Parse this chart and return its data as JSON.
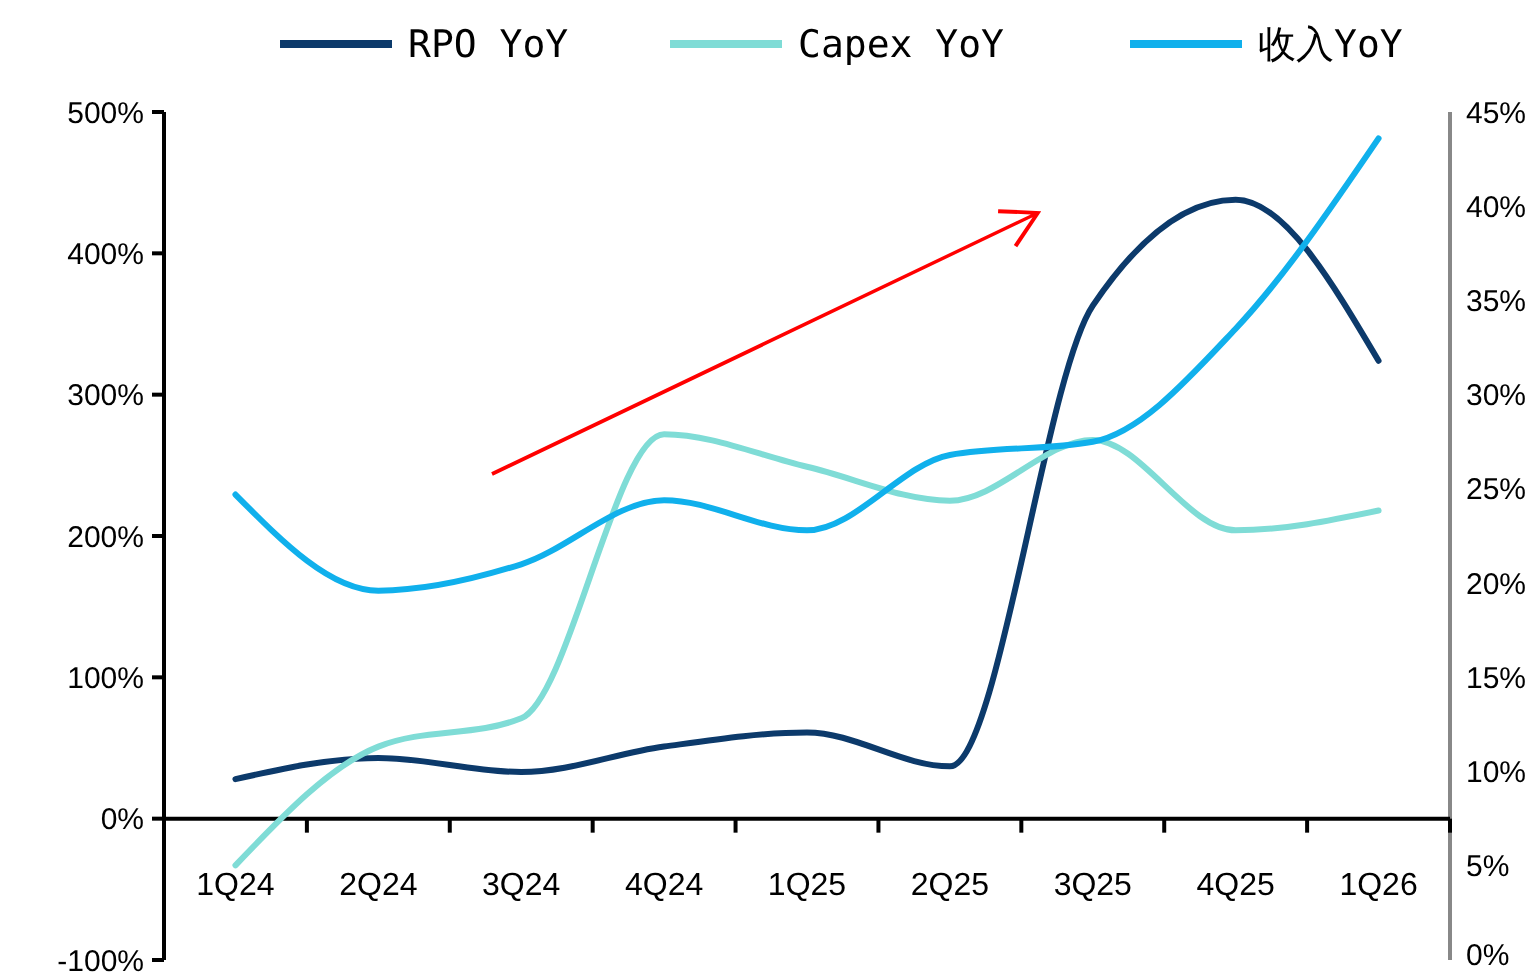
{
  "chart_data": {
    "type": "line",
    "categories": [
      "1Q24",
      "2Q24",
      "3Q24",
      "4Q24",
      "1Q25",
      "2Q25",
      "3Q25",
      "4Q25",
      "1Q26"
    ],
    "series": [
      {
        "name": "RPO YoY",
        "color": "#0c3a6b",
        "values": [
          28,
          43,
          33,
          51,
          61,
          37,
          363,
          438,
          324
        ]
      },
      {
        "name": "Capex YoY",
        "color": "#7fdcd6",
        "values": [
          -33,
          51,
          71,
          272,
          249,
          225,
          268,
          204,
          218
        ]
      },
      {
        "name": "收入YoY",
        "color": "#10b0ec",
        "axis": "y2",
        "values": [
          24.7,
          19.6,
          21.0,
          24.4,
          22.8,
          26.8,
          27.5,
          33.5,
          43.6
        ]
      }
    ],
    "ylim": [
      -100,
      500
    ],
    "yticks": [
      {
        "value": -100,
        "label": "-100%"
      },
      {
        "value": 0,
        "label": "0%"
      },
      {
        "value": 100,
        "label": "100%"
      },
      {
        "value": 200,
        "label": "200%"
      },
      {
        "value": 300,
        "label": "300%"
      },
      {
        "value": 400,
        "label": "400%"
      },
      {
        "value": 500,
        "label": "500%"
      }
    ],
    "y2lim": [
      0,
      45
    ],
    "y2ticks": [
      {
        "value": 0,
        "label": "0%"
      },
      {
        "value": 5,
        "label": "5%"
      },
      {
        "value": 10,
        "label": "10%"
      },
      {
        "value": 15,
        "label": "15%"
      },
      {
        "value": 20,
        "label": "20%"
      },
      {
        "value": 25,
        "label": "25%"
      },
      {
        "value": 30,
        "label": "30%"
      },
      {
        "value": 35,
        "label": "35%"
      },
      {
        "value": 40,
        "label": "40%"
      },
      {
        "value": 45,
        "label": "45%"
      }
    ],
    "legend": "top",
    "grid": false,
    "marker": "none",
    "line_style": "solid"
  }
}
